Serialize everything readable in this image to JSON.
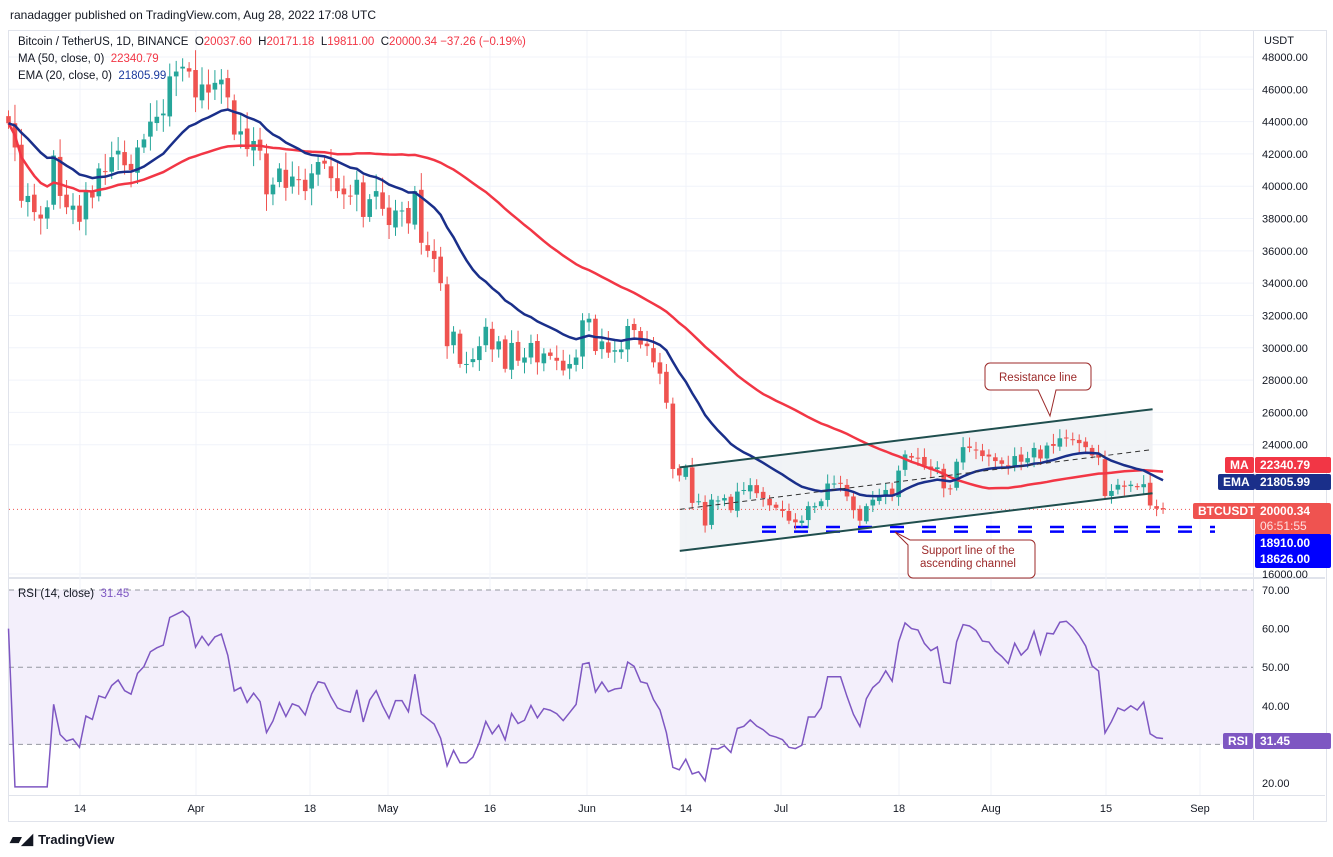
{
  "publisher": "ranadagger published on TradingView.com, Aug 28, 2022 17:08 UTC",
  "legend": {
    "symbol": "Bitcoin / TetherUS, 1D, BINANCE",
    "open_label": "O",
    "open": "20037.60",
    "high_label": "H",
    "high": "20171.18",
    "low_label": "L",
    "low": "19811.00",
    "close_label": "C",
    "close": "20000.34",
    "change": "−37.26 (−0.19%)",
    "ma_label": "MA (50, close, 0)",
    "ma_value": "22340.79",
    "ema_label": "EMA (20, close, 0)",
    "ema_value": "21805.99",
    "rsi_label": "RSI (14, close)",
    "rsi_value": "31.45"
  },
  "axis": {
    "currency": "USDT",
    "price_ticks": [
      "48000.00",
      "46000.00",
      "44000.00",
      "42000.00",
      "40000.00",
      "38000.00",
      "36000.00",
      "34000.00",
      "32000.00",
      "30000.00",
      "28000.00",
      "26000.00",
      "24000.00",
      "16000.00"
    ],
    "rsi_ticks": [
      "70.00",
      "60.00",
      "50.00",
      "40.00",
      "20.00"
    ],
    "time_ticks": [
      "14",
      "Apr",
      "18",
      "May",
      "16",
      "Jun",
      "14",
      "Jul",
      "18",
      "Aug",
      "15",
      "Sep"
    ]
  },
  "tags": {
    "ma_name": "MA",
    "ma_value": "22340.79",
    "ema_name": "EMA",
    "ema_value": "21805.99",
    "symbol_name": "BTCUSDT",
    "price": "20000.34",
    "countdown": "06:51:55",
    "support1": "18910.00",
    "support2": "18626.00",
    "rsi_name": "RSI",
    "rsi_value": "31.45"
  },
  "annotations": {
    "resistance": "Resistance line",
    "support_line1": "Support line of the",
    "support_line2": "ascending channel"
  },
  "footer": {
    "brand": "TradingView"
  },
  "colors": {
    "up": "#26a69a",
    "down": "#ef5350",
    "ma": "#f23645",
    "ema": "#1a2f8a",
    "rsi": "#7e57c2",
    "support": "#0000ff"
  },
  "chart_data": {
    "type": "candlestick",
    "title": "Bitcoin / TetherUS, 1D, BINANCE",
    "start_date": "2022-03-02",
    "end_date": "2022-08-28",
    "ylim": [
      16000,
      48500
    ],
    "rsi_ylim": [
      18,
      72
    ],
    "closes": [
      43.9,
      42.4,
      39.1,
      39.4,
      38.4,
      38.0,
      38.7,
      41.9,
      39.4,
      38.7,
      38.8,
      37.8,
      39.7,
      39.3,
      41.1,
      40.9,
      41.8,
      42.2,
      41.3,
      41.0,
      42.4,
      42.9,
      44.0,
      44.3,
      44.5,
      46.8,
      47.1,
      47.4,
      47.1,
      45.5,
      46.3,
      45.8,
      46.4,
      46.6,
      45.5,
      43.2,
      43.4,
      42.3,
      42.8,
      42.2,
      39.5,
      40.1,
      41.1,
      39.9,
      40.6,
      40.4,
      39.7,
      40.8,
      41.5,
      41.4,
      40.5,
      39.7,
      39.5,
      39.4,
      40.4,
      38.1,
      39.2,
      39.7,
      38.6,
      37.6,
      38.5,
      38.5,
      37.7,
      39.7,
      36.5,
      36.0,
      35.5,
      34.0,
      30.1,
      31.0,
      29.0,
      29.0,
      29.3,
      30.1,
      31.3,
      29.9,
      30.4,
      28.7,
      30.3,
      29.2,
      29.4,
      30.3,
      29.1,
      29.65,
      29.5,
      29.2,
      28.6,
      29.0,
      29.4,
      31.7,
      31.8,
      29.8,
      30.4,
      29.7,
      29.85,
      29.9,
      31.35,
      31.1,
      30.2,
      30.1,
      29.1,
      28.4,
      26.6,
      22.5,
      22.1,
      22.6,
      20.4,
      20.5,
      19.0,
      20.6,
      20.55,
      20.7,
      19.95,
      21.1,
      21.2,
      21.5,
      21.0,
      20.7,
      20.25,
      20.1,
      19.9,
      19.3,
      19.2,
      19.3,
      20.2,
      20.2,
      20.5,
      21.6,
      21.6,
      21.6,
      20.8,
      19.95,
      19.3,
      20.2,
      20.6,
      20.8,
      21.2,
      20.8,
      22.4,
      23.4,
      23.2,
      23.15,
      22.7,
      22.45,
      22.6,
      21.3,
      21.25,
      22.95,
      23.85,
      23.8,
      23.65,
      23.3,
      23.27,
      22.99,
      22.82,
      22.6,
      23.3,
      22.95,
      23.17,
      23.8,
      23.15,
      23.95,
      23.93,
      24.4,
      24.44,
      24.3,
      24.1,
      23.85,
      23.34,
      23.2,
      20.83,
      21.14,
      21.52,
      21.4,
      21.53,
      21.37,
      21.56,
      20.24,
      20.04,
      20.0
    ],
    "close_units": "thousand USDT",
    "ma_period": 50,
    "ema_period": 20,
    "rsi_period": 14,
    "channel": {
      "start_day_index": 105,
      "end_day_index": 178,
      "lower": [
        17430,
        21000
      ],
      "middle": [
        20000,
        23700
      ],
      "upper": [
        22600,
        26200
      ]
    },
    "support_levels": [
      18910,
      18626
    ],
    "last_price": 20000.34
  }
}
